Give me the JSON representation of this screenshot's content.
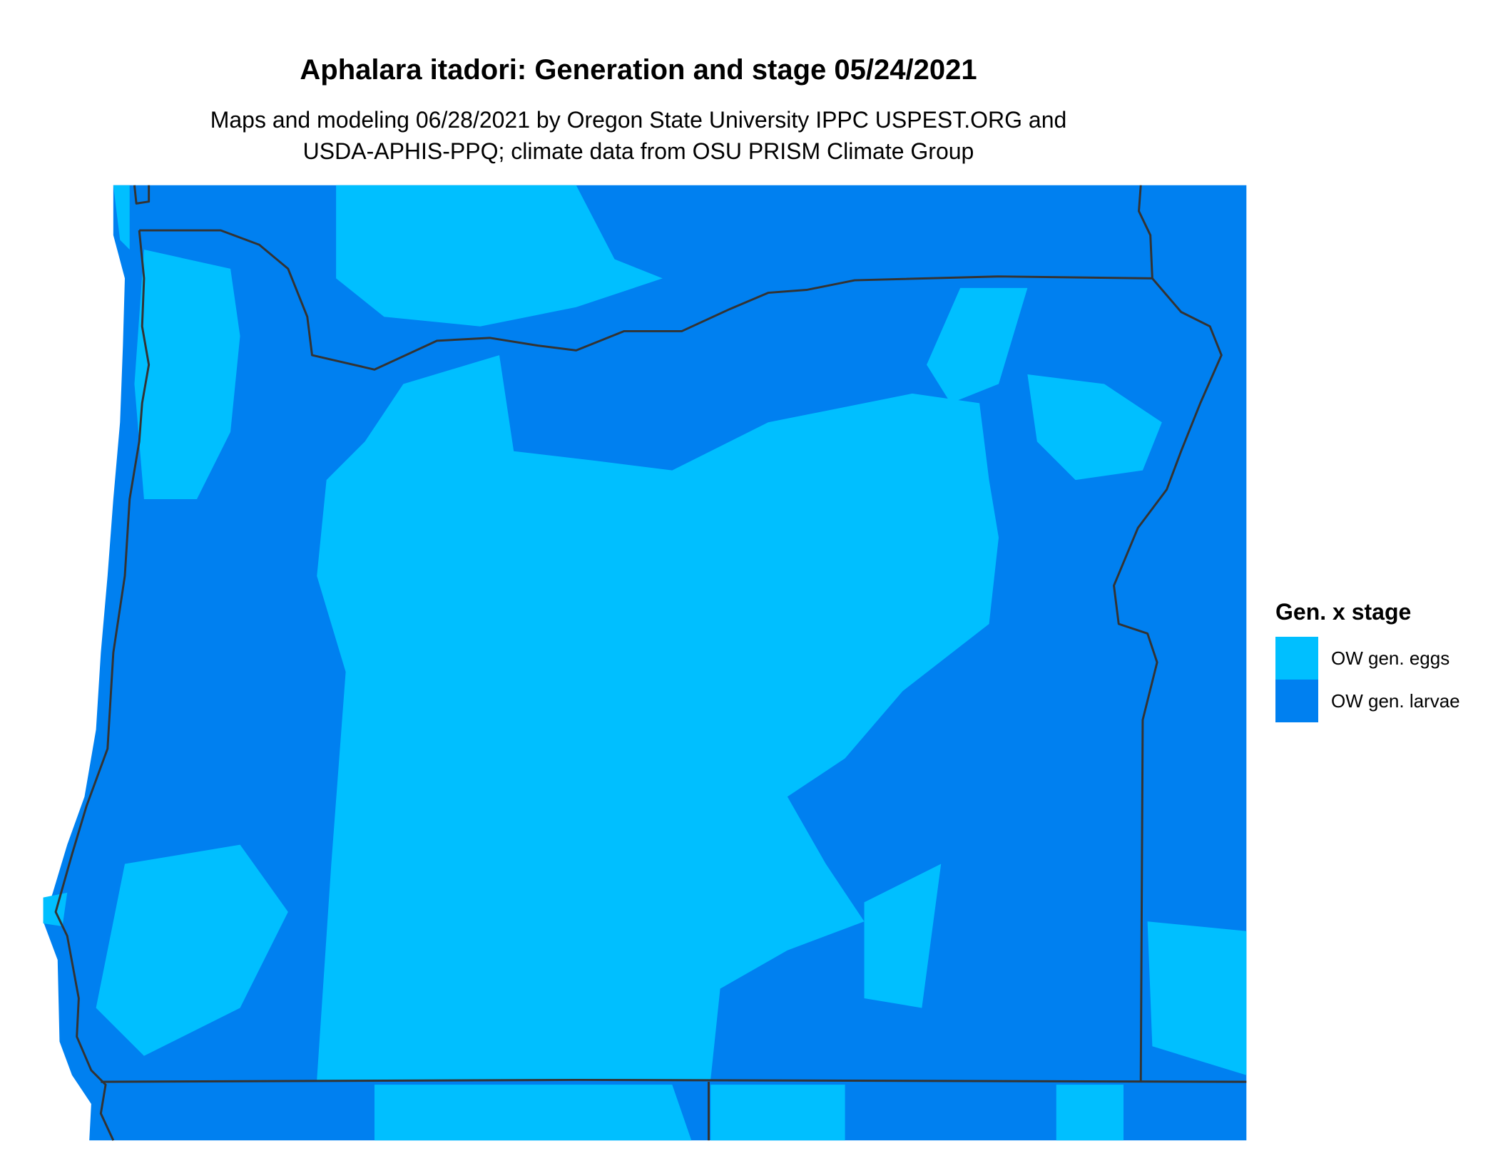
{
  "title": "Aphalara itadori: Generation and stage 05/24/2021",
  "subtitle_lines": [
    "Maps and modeling 06/28/2021 by Oregon State University IPPC USPEST.ORG and",
    "USDA-APHIS-PPQ; climate data from OSU PRISM Climate Group"
  ],
  "legend": {
    "title": "Gen. x stage",
    "items": [
      {
        "label": "OW gen. eggs",
        "color": "#00BFFF"
      },
      {
        "label": "OW gen. larvae",
        "color": "#0080F0"
      }
    ]
  },
  "chart_data": {
    "type": "heatmap",
    "subject": "Oregon categorical raster map",
    "categories": [
      "OW gen. eggs",
      "OW gen. larvae"
    ],
    "colors": {
      "OW gen. eggs": "#00BFFF",
      "OW gen. larvae": "#0080F0",
      "boundaries": "#333333"
    },
    "legend_placement": "right"
  }
}
